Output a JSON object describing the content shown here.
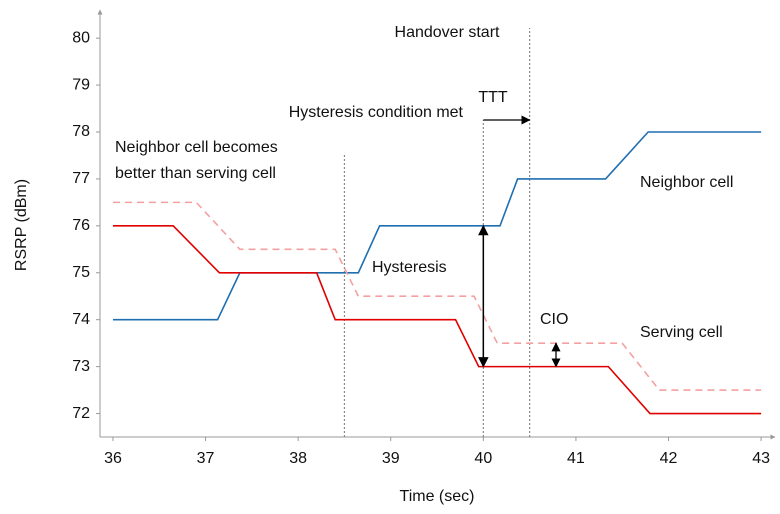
{
  "chart_data": {
    "type": "line",
    "xlabel": "Time (sec)",
    "ylabel": "RSRP (dBm)",
    "xlim": [
      35.86,
      43.15
    ],
    "ylim": [
      71.5,
      80.6
    ],
    "xticks": [
      36,
      37,
      38,
      39,
      40,
      41,
      42,
      43
    ],
    "yticks": [
      72,
      73,
      74,
      75,
      76,
      77,
      78,
      79,
      80
    ],
    "series": [
      {
        "name": "Neighbor cell",
        "color": "#1f6fb0",
        "x": [
          36,
          37.13,
          37.37,
          38.65,
          38.88,
          40.18,
          40.37,
          41.32,
          41.78,
          43
        ],
        "values": [
          74,
          74,
          75,
          75,
          76,
          76,
          77,
          77,
          78,
          78
        ]
      },
      {
        "name": "Serving cell",
        "color": "#e00000",
        "x": [
          36,
          36.65,
          37.15,
          38.2,
          38.4,
          39.7,
          39.95,
          41.35,
          41.8,
          43
        ],
        "values": [
          76,
          76,
          75,
          75,
          74,
          74,
          73,
          73,
          72,
          72
        ]
      },
      {
        "color": "#f4a0a0",
        "dashed": true,
        "x": [
          36,
          36.9,
          37.37,
          38.4,
          38.65,
          39.9,
          40.15,
          41.5,
          41.9,
          43
        ],
        "values": [
          76.5,
          76.5,
          75.5,
          75.5,
          74.5,
          74.5,
          73.5,
          73.5,
          72.5,
          72.5
        ]
      }
    ],
    "vlines": [
      38.5,
      40,
      40.5
    ],
    "annotations": [
      "Handover start",
      "TTT",
      "Hysteresis condition met",
      "Neighbor cell becomes",
      "better than serving cell",
      "Hysteresis",
      "CIO"
    ]
  }
}
